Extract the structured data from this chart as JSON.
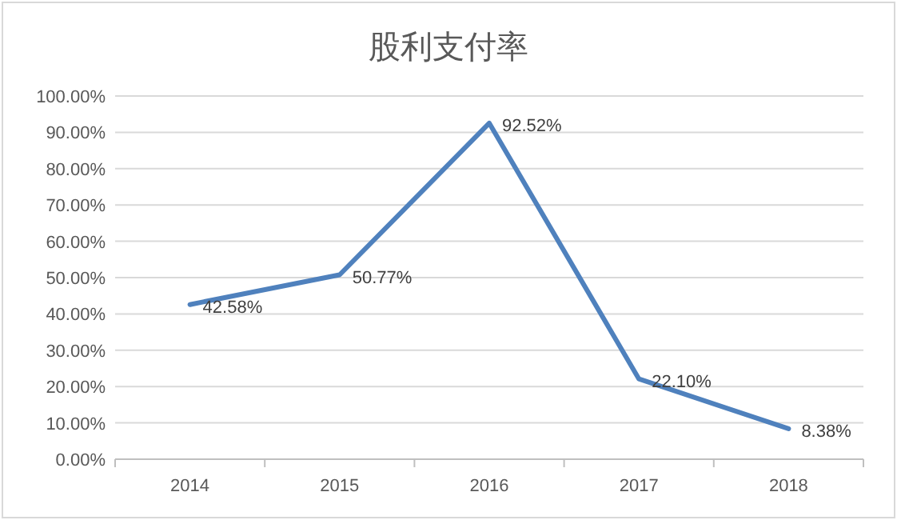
{
  "chart_data": {
    "type": "line",
    "title": "股利支付率",
    "categories": [
      "2014",
      "2015",
      "2016",
      "2017",
      "2018"
    ],
    "series": [
      {
        "color": "#4f81bd",
        "values": [
          42.58,
          50.77,
          92.52,
          22.1,
          8.38
        ],
        "value_labels": [
          "42.58%",
          "50.77%",
          "92.52%",
          "22.10%",
          "8.38%"
        ]
      }
    ],
    "ylim": [
      0,
      100
    ],
    "yticks": [
      {
        "value": 0,
        "label": "0.00%"
      },
      {
        "value": 10,
        "label": "10.00%"
      },
      {
        "value": 20,
        "label": "20.00%"
      },
      {
        "value": 30,
        "label": "30.00%"
      },
      {
        "value": 40,
        "label": "40.00%"
      },
      {
        "value": 50,
        "label": "50.00%"
      },
      {
        "value": 60,
        "label": "60.00%"
      },
      {
        "value": 70,
        "label": "70.00%"
      },
      {
        "value": 80,
        "label": "80.00%"
      },
      {
        "value": 90,
        "label": "90.00%"
      },
      {
        "value": 100,
        "label": "100.00%"
      }
    ],
    "grid": "y",
    "marker": "none",
    "line_style": "solid"
  }
}
